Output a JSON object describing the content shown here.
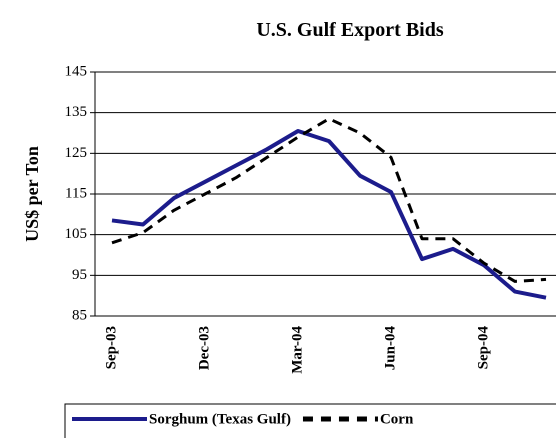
{
  "chart_data": {
    "type": "line",
    "title": "U.S. Gulf Export Bids",
    "y_label": "US$ per Ton",
    "categories": [
      "Sep-03",
      null,
      null,
      "Dec-03",
      null,
      null,
      "Mar-04",
      null,
      null,
      "Jun-04",
      null,
      null,
      "Sep-04",
      null,
      null
    ],
    "series": [
      {
        "name": "Sorghum (Texas Gulf)",
        "color": "#1c1c8c",
        "dash": false,
        "values": [
          108.5,
          107.5,
          114,
          118,
          122,
          126,
          130.5,
          128,
          119.5,
          115.5,
          99,
          101.5,
          97.5,
          91,
          89.5
        ]
      },
      {
        "name": "Corn",
        "color": "#000000",
        "dash": true,
        "values": [
          103,
          105.5,
          111,
          115,
          119,
          124,
          129,
          133.5,
          130,
          124,
          104,
          104,
          98,
          93.5,
          94
        ]
      }
    ],
    "ylim": [
      85,
      145
    ],
    "yticks": [
      85,
      95,
      105,
      115,
      125,
      135,
      145
    ],
    "grid": true
  }
}
